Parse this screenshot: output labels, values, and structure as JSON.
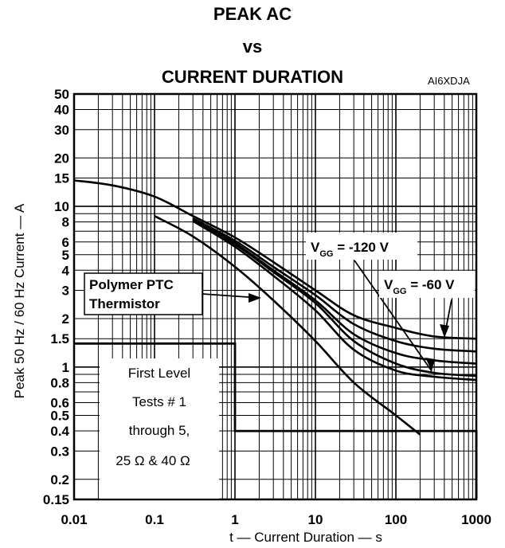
{
  "header": {
    "title_line1": "PEAK AC",
    "title_line2": "vs",
    "title_line3": "CURRENT DURATION",
    "figure_code": "AI6XDJA"
  },
  "chart_data": {
    "type": "line",
    "xlabel": "t — Current Duration — s",
    "ylabel": "Peak 50 Hz / 60 Hz Current — A",
    "xscale": "log",
    "yscale": "log",
    "xlim": [
      0.01,
      1000
    ],
    "ylim": [
      0.15,
      50
    ],
    "grid": true,
    "x_ticks": [
      "0.01",
      "0.1",
      "1",
      "10",
      "100",
      "1000"
    ],
    "y_ticks": [
      {
        "v": 50,
        "label": "50"
      },
      {
        "v": 40,
        "label": "40"
      },
      {
        "v": 30,
        "label": "30"
      },
      {
        "v": 20,
        "label": "20"
      },
      {
        "v": 15,
        "label": "15"
      },
      {
        "v": 10,
        "label": "10"
      },
      {
        "v": 8,
        "label": "8"
      },
      {
        "v": 6,
        "label": "6"
      },
      {
        "v": 5,
        "label": "5"
      },
      {
        "v": 4,
        "label": "4"
      },
      {
        "v": 3,
        "label": "3"
      },
      {
        "v": 2,
        "label": "2"
      },
      {
        "v": 1.5,
        "label": "1.5"
      },
      {
        "v": 1,
        "label": "1"
      },
      {
        "v": 0.8,
        "label": "0.8"
      },
      {
        "v": 0.6,
        "label": "0.6"
      },
      {
        "v": 0.5,
        "label": "0.5"
      },
      {
        "v": 0.4,
        "label": "0.4"
      },
      {
        "v": 0.3,
        "label": "0.3"
      },
      {
        "v": 0.2,
        "label": "0.2"
      },
      {
        "v": 0.15,
        "label": "0.15"
      }
    ],
    "series": [
      {
        "points": [
          [
            0.01,
            14.5
          ],
          [
            0.03,
            13.5
          ],
          [
            0.1,
            11.5
          ],
          [
            0.3,
            8.7
          ],
          [
            1,
            6.4
          ],
          [
            3,
            4.5
          ],
          [
            10,
            3.0
          ],
          [
            30,
            2.1
          ],
          [
            100,
            1.75
          ],
          [
            300,
            1.55
          ],
          [
            1000,
            1.5
          ]
        ]
      },
      {
        "points": [
          [
            0.3,
            8.4
          ],
          [
            1,
            6.1
          ],
          [
            3,
            4.2
          ],
          [
            10,
            2.8
          ],
          [
            30,
            1.85
          ],
          [
            100,
            1.45
          ],
          [
            300,
            1.3
          ],
          [
            1000,
            1.25
          ]
        ]
      },
      {
        "points": [
          [
            0.3,
            8.3
          ],
          [
            1,
            5.9
          ],
          [
            3,
            4.0
          ],
          [
            10,
            2.6
          ],
          [
            30,
            1.6
          ],
          [
            100,
            1.22
          ],
          [
            300,
            1.1
          ],
          [
            1000,
            1.05
          ]
        ]
      },
      {
        "points": [
          [
            0.3,
            8.2
          ],
          [
            1,
            5.8
          ],
          [
            3,
            3.9
          ],
          [
            10,
            2.5
          ],
          [
            30,
            1.45
          ],
          [
            100,
            1.05
          ],
          [
            300,
            0.92
          ],
          [
            1000,
            0.88
          ]
        ]
      },
      {
        "points": [
          [
            0.3,
            8.1
          ],
          [
            1,
            5.6
          ],
          [
            3,
            3.7
          ],
          [
            10,
            2.25
          ],
          [
            30,
            1.28
          ],
          [
            100,
            0.95
          ],
          [
            300,
            0.87
          ],
          [
            1000,
            0.83
          ]
        ]
      },
      {
        "points": [
          [
            0.1,
            8.7
          ],
          [
            0.3,
            6.5
          ],
          [
            1,
            4.2
          ],
          [
            3,
            2.6
          ],
          [
            10,
            1.45
          ],
          [
            30,
            0.8
          ],
          [
            100,
            0.5
          ],
          [
            200,
            0.38
          ]
        ]
      }
    ],
    "step": {
      "points": [
        [
          0.01,
          1.4
        ],
        [
          1,
          1.4
        ],
        [
          1,
          0.4
        ],
        [
          1000,
          0.4
        ],
        [
          1000,
          0.15
        ]
      ]
    },
    "annotations": {
      "vgg120_prefix": "V",
      "vgg120_sub": "GG",
      "vgg120_value": " = -120 V",
      "vgg60_prefix": "V",
      "vgg60_sub": "GG",
      "vgg60_value": " = -60 V",
      "ptc_line1": "Polymer PTC",
      "ptc_line2": "Thermistor",
      "box_line1": "First Level",
      "box_line2": "Tests # 1",
      "box_line3": "through 5,",
      "box_line4": "25 Ω & 40 Ω"
    }
  }
}
